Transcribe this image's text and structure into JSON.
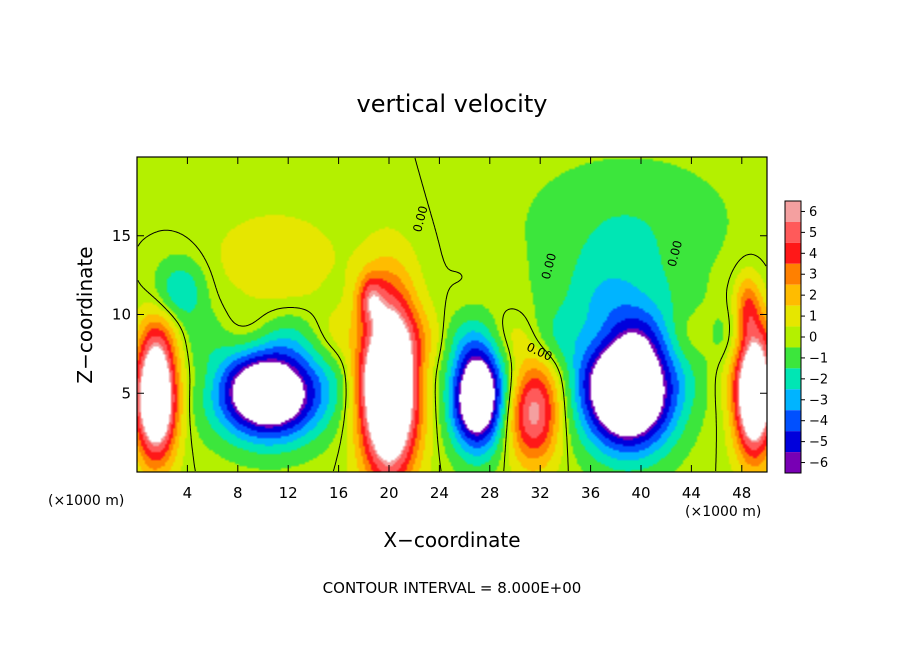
{
  "chart_data": {
    "type": "heatmap",
    "title": "vertical velocity",
    "xlabel": "X−coordinate",
    "ylabel": "Z−coordinate",
    "x_unit_left": "(×1000 m)",
    "x_unit_right": "(×1000 m)",
    "footer": "CONTOUR INTERVAL = 8.000E+00",
    "xlim": [
      0,
      50
    ],
    "ylim": [
      0,
      20
    ],
    "x_ticks": [
      4,
      8,
      12,
      16,
      20,
      24,
      28,
      32,
      36,
      40,
      44,
      48
    ],
    "y_ticks": [
      5,
      10,
      15
    ],
    "colorbar": {
      "ticks": [
        "6",
        "5",
        "4",
        "3",
        "2",
        "1",
        "0",
        "−1",
        "−2",
        "−3",
        "−4",
        "−5",
        "−6"
      ],
      "colors": [
        "#f4a0a0",
        "#ff5a5a",
        "#ff1818",
        "#ff8000",
        "#ffbc00",
        "#e6e600",
        "#b4f000",
        "#3ce63c",
        "#00e6b4",
        "#00b4ff",
        "#0050ff",
        "#0000dc",
        "#7800b4"
      ]
    },
    "contour_label": "0.00",
    "features": [
      {
        "name": "updraft",
        "cx": 1.5,
        "cz": 4.8,
        "rx": 1.6,
        "rz": 3.8,
        "w": 11
      },
      {
        "name": "updraft",
        "cx": 20.0,
        "cz": 5.5,
        "rx": 2.2,
        "rz": 5.5,
        "w": 13
      },
      {
        "name": "updraft",
        "cx": 49.0,
        "cz": 5.0,
        "rx": 1.5,
        "rz": 3.8,
        "w": 11
      },
      {
        "name": "updraft",
        "cx": 31.5,
        "cz": 3.8,
        "rx": 2.0,
        "rz": 3.2,
        "w": 6
      },
      {
        "name": "updraft",
        "cx": 48.5,
        "cz": 10.5,
        "rx": 1.0,
        "rz": 2.0,
        "w": 3
      },
      {
        "name": "updraft",
        "cx": 18.5,
        "cz": 11.0,
        "rx": 1.0,
        "rz": 1.5,
        "w": 3
      },
      {
        "name": "updraft",
        "cx": 11.0,
        "cz": 13.5,
        "rx": 5.0,
        "rz": 3.0,
        "w": 1.2
      },
      {
        "name": "downdraft",
        "cx": 10.5,
        "cz": 5.0,
        "rx": 4.0,
        "rz": 2.8,
        "w": -10
      },
      {
        "name": "downdraft",
        "cx": 27.0,
        "cz": 4.8,
        "rx": 2.0,
        "rz": 3.2,
        "w": -10
      },
      {
        "name": "downdraft",
        "cx": 39.0,
        "cz": 5.0,
        "rx": 3.5,
        "rz": 3.5,
        "w": -11
      },
      {
        "name": "downdraft",
        "cx": 38.0,
        "cz": 10.0,
        "rx": 5.0,
        "rz": 4.0,
        "w": -2.5
      },
      {
        "name": "downdraft",
        "cx": 3.5,
        "cz": 11.5,
        "rx": 2.0,
        "rz": 2.0,
        "w": -2.5
      },
      {
        "name": "downdraft",
        "cx": 39.0,
        "cz": 16.0,
        "rx": 8.0,
        "rz": 4.0,
        "w": -1.3
      }
    ]
  }
}
